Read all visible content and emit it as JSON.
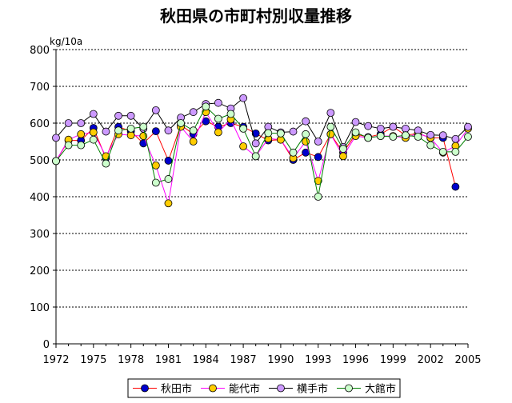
{
  "chart_data": {
    "type": "line",
    "title": "秋田県の市町村別収量推移",
    "ylabel": "kg/10a",
    "xlabel": "",
    "ylim": [
      0,
      800
    ],
    "yticks": [
      0,
      100,
      200,
      300,
      400,
      500,
      600,
      700,
      800
    ],
    "xlim": [
      1972,
      2005
    ],
    "xticks": [
      1972,
      1975,
      1978,
      1981,
      1984,
      1987,
      1990,
      1993,
      1996,
      1999,
      2002,
      2005
    ],
    "grid": "horizontal dotted",
    "legend_position": "bottom",
    "series": [
      {
        "name": "秋田市",
        "line_color": "#ff0000",
        "marker_color": "#0000cc",
        "x": [
          1972,
          1973,
          1974,
          1975,
          1976,
          1977,
          1978,
          1979,
          1980,
          1981,
          1982,
          1983,
          1984,
          1985,
          1986,
          1987,
          1988,
          1989,
          1990,
          1991,
          1992,
          1993,
          1994,
          1995,
          1996,
          1997,
          1998,
          1999,
          2000,
          2001,
          2002,
          2003,
          2004
        ],
        "values": [
          497,
          553,
          553,
          587,
          505,
          590,
          578,
          545,
          578,
          498,
          595,
          570,
          605,
          590,
          600,
          590,
          572,
          553,
          555,
          500,
          520,
          508,
          570,
          520,
          570,
          562,
          570,
          590,
          567,
          572,
          560,
          560,
          427
        ]
      },
      {
        "name": "能代市",
        "line_color": "#ff00ff",
        "marker_color": "#ffcc00",
        "x": [
          1972,
          1973,
          1974,
          1975,
          1976,
          1977,
          1978,
          1979,
          1980,
          1981,
          1982,
          1983,
          1984,
          1985,
          1986,
          1987,
          1988,
          1989,
          1990,
          1991,
          1992,
          1993,
          1994,
          1995,
          1996,
          1997,
          1998,
          1999,
          2000,
          2001,
          2002,
          2003,
          2004,
          2005
        ],
        "values": [
          497,
          555,
          570,
          575,
          510,
          570,
          567,
          565,
          485,
          382,
          590,
          550,
          630,
          575,
          610,
          537,
          510,
          558,
          555,
          505,
          550,
          443,
          570,
          510,
          565,
          560,
          565,
          565,
          560,
          572,
          560,
          520,
          538,
          585
        ]
      },
      {
        "name": "横手市",
        "line_color": "#000000",
        "marker_color": "#cc99ff",
        "x": [
          1972,
          1973,
          1974,
          1975,
          1976,
          1977,
          1978,
          1979,
          1980,
          1981,
          1982,
          1983,
          1984,
          1985,
          1986,
          1987,
          1988,
          1989,
          1990,
          1991,
          1992,
          1993,
          1994,
          1995,
          1996,
          1997,
          1998,
          1999,
          2000,
          2001,
          2002,
          2003,
          2004,
          2005
        ],
        "values": [
          560,
          600,
          600,
          625,
          577,
          620,
          620,
          585,
          635,
          580,
          615,
          630,
          652,
          655,
          640,
          668,
          545,
          590,
          575,
          577,
          605,
          550,
          628,
          535,
          603,
          592,
          585,
          590,
          585,
          580,
          568,
          567,
          557,
          590
        ]
      },
      {
        "name": "大館市",
        "line_color": "#008000",
        "marker_color": "#ccffcc",
        "x": [
          1972,
          1973,
          1974,
          1975,
          1976,
          1977,
          1978,
          1979,
          1980,
          1981,
          1982,
          1983,
          1984,
          1985,
          1986,
          1987,
          1988,
          1989,
          1990,
          1991,
          1992,
          1993,
          1994,
          1995,
          1996,
          1997,
          1998,
          1999,
          2000,
          2001,
          2002,
          2003,
          2004,
          2005
        ],
        "values": [
          497,
          540,
          540,
          555,
          490,
          580,
          585,
          590,
          438,
          448,
          600,
          580,
          645,
          612,
          625,
          585,
          510,
          573,
          572,
          520,
          570,
          400,
          590,
          530,
          575,
          560,
          565,
          563,
          567,
          563,
          540,
          522,
          522,
          563
        ]
      }
    ]
  }
}
